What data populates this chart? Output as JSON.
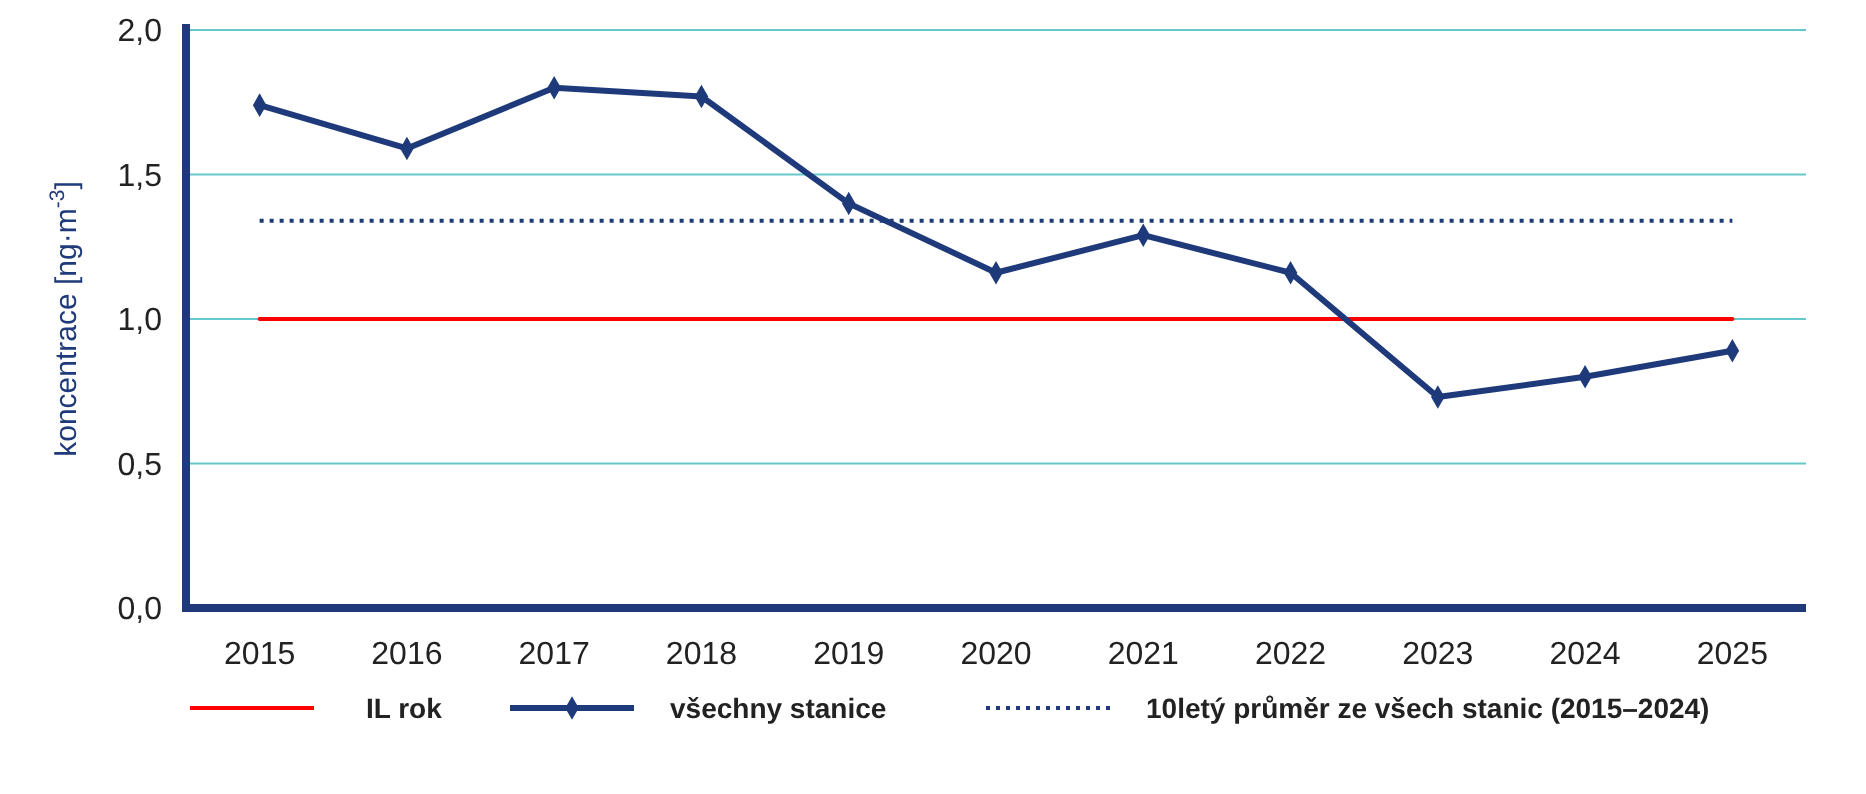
{
  "chart_data": {
    "type": "line",
    "ylabel": "koncentrace [ng·m$^{-3}$]",
    "categories": [
      "2015",
      "2016",
      "2017",
      "2018",
      "2019",
      "2020",
      "2021",
      "2022",
      "2023",
      "2024",
      "2025"
    ],
    "series": [
      {
        "name": "IL rok",
        "color": "#ff0000",
        "values": [
          1.0,
          1.0,
          1.0,
          1.0,
          1.0,
          1.0,
          1.0,
          1.0,
          1.0,
          1.0,
          1.0
        ],
        "marker": "none",
        "line_style": "solid"
      },
      {
        "name": "všechny stanice",
        "color": "#1f3a7a",
        "values": [
          1.74,
          1.59,
          1.8,
          1.77,
          1.4,
          1.16,
          1.29,
          1.16,
          0.73,
          0.8,
          0.89
        ],
        "marker": "diamond",
        "line_style": "solid"
      },
      {
        "name": "10letý průměr ze všech stanic (2015–2024)",
        "color": "#1f3a7a",
        "values": [
          1.34,
          1.34,
          1.34,
          1.34,
          1.34,
          1.34,
          1.34,
          1.34,
          1.34,
          1.34,
          1.34
        ],
        "marker": "none",
        "line_style": "dotted"
      }
    ],
    "ylim": [
      0,
      2
    ],
    "yticks": [
      {
        "value": 0,
        "label": "0,0"
      },
      {
        "value": 0.5,
        "label": "0,5"
      },
      {
        "value": 1,
        "label": "1,0"
      },
      {
        "value": 1.5,
        "label": "1,5"
      },
      {
        "value": 2,
        "label": "2,0"
      }
    ],
    "grid": "y",
    "legend": "bottom"
  }
}
